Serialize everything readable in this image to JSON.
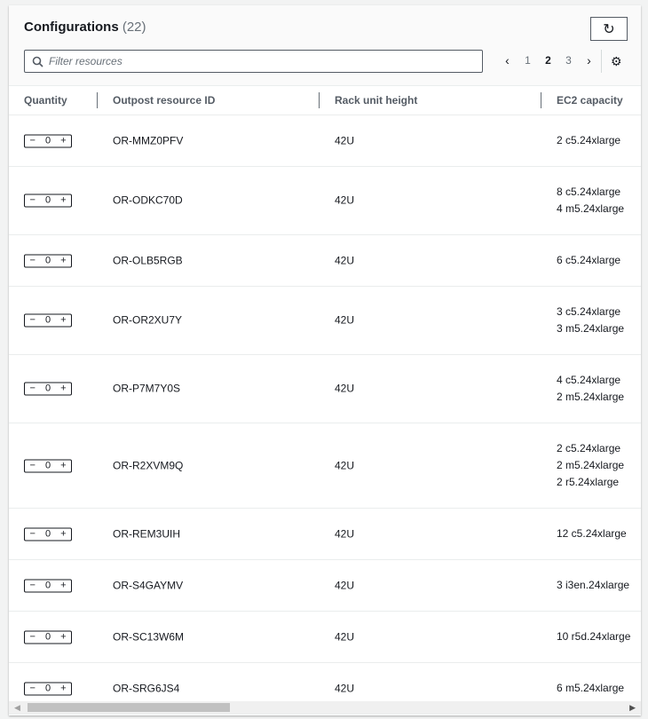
{
  "header": {
    "title": "Configurations",
    "count": "(22)",
    "search_placeholder": "Filter resources"
  },
  "pagination": {
    "pages": [
      "1",
      "2",
      "3"
    ],
    "current": "2"
  },
  "columns": [
    "Quantity",
    "Outpost resource ID",
    "Rack unit height",
    "EC2 capacity"
  ],
  "rows": [
    {
      "qty": "0",
      "id": "OR-MMZ0PFV",
      "height": "42U",
      "ec2": [
        "2 c5.24xlarge"
      ]
    },
    {
      "qty": "0",
      "id": "OR-ODKC70D",
      "height": "42U",
      "ec2": [
        "8 c5.24xlarge",
        "4 m5.24xlarge"
      ]
    },
    {
      "qty": "0",
      "id": "OR-OLB5RGB",
      "height": "42U",
      "ec2": [
        "6 c5.24xlarge"
      ]
    },
    {
      "qty": "0",
      "id": "OR-OR2XU7Y",
      "height": "42U",
      "ec2": [
        "3 c5.24xlarge",
        "3 m5.24xlarge"
      ]
    },
    {
      "qty": "0",
      "id": "OR-P7M7Y0S",
      "height": "42U",
      "ec2": [
        "4 c5.24xlarge",
        "2 m5.24xlarge"
      ]
    },
    {
      "qty": "0",
      "id": "OR-R2XVM9Q",
      "height": "42U",
      "ec2": [
        "2 c5.24xlarge",
        "2 m5.24xlarge",
        "2 r5.24xlarge"
      ]
    },
    {
      "qty": "0",
      "id": "OR-REM3UIH",
      "height": "42U",
      "ec2": [
        "12 c5.24xlarge"
      ]
    },
    {
      "qty": "0",
      "id": "OR-S4GAYMV",
      "height": "42U",
      "ec2": [
        "3 i3en.24xlarge"
      ]
    },
    {
      "qty": "0",
      "id": "OR-SC13W6M",
      "height": "42U",
      "ec2": [
        "10 r5d.24xlarge"
      ]
    },
    {
      "qty": "0",
      "id": "OR-SRG6JS4",
      "height": "42U",
      "ec2": [
        "6 m5.24xlarge"
      ]
    }
  ]
}
